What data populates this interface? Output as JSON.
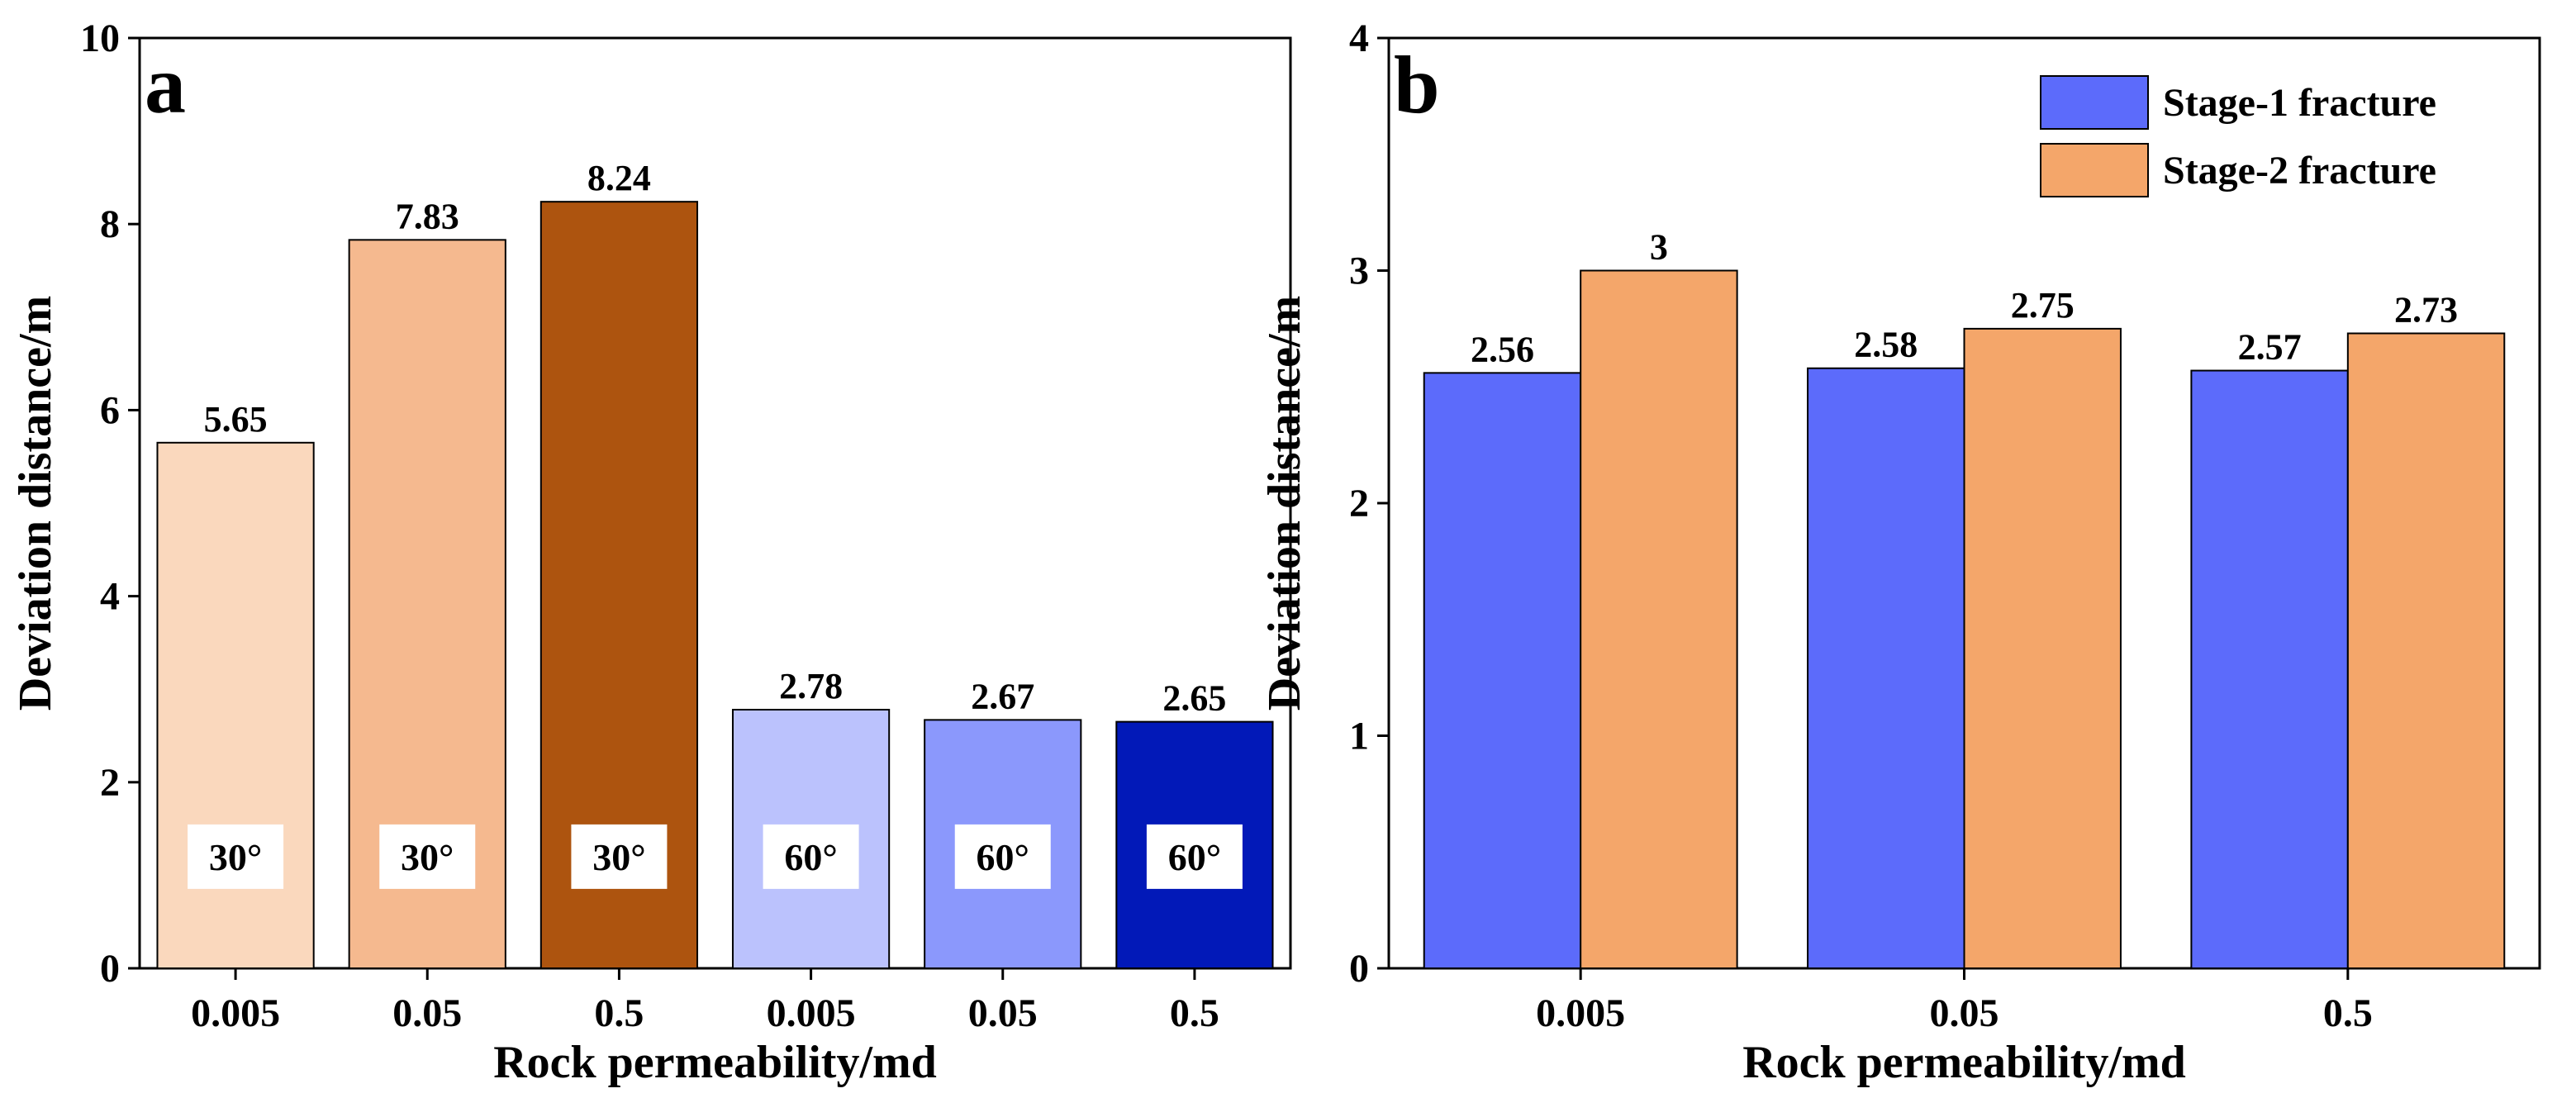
{
  "chart_data": [
    {
      "panel_label": "a",
      "type": "bar",
      "categories": [
        "0.005",
        "0.05",
        "0.5",
        "0.005",
        "0.05",
        "0.5"
      ],
      "values": [
        5.65,
        7.83,
        8.24,
        2.78,
        2.67,
        2.65
      ],
      "data_labels": [
        "5.65",
        "7.83",
        "8.24",
        "2.78",
        "2.67",
        "2.65"
      ],
      "bar_annotations": [
        "30°",
        "30°",
        "30°",
        "60°",
        "60°",
        "60°"
      ],
      "bar_colors": [
        "#fad8bd",
        "#f5b98f",
        "#ad540f",
        "#bbc2fd",
        "#8b98fc",
        "#0219b8"
      ],
      "xlabel": "Rock permeability/md",
      "ylabel": "Deviation distance/m",
      "ylim": [
        0,
        10
      ],
      "yticks": [
        0,
        2,
        4,
        6,
        8,
        10
      ],
      "grid": false
    },
    {
      "panel_label": "b",
      "type": "bar",
      "categories": [
        "0.005",
        "0.05",
        "0.5"
      ],
      "series": [
        {
          "name": "Stage-1 fracture",
          "color": "#5c6bfb",
          "values": [
            2.56,
            2.58,
            2.57
          ],
          "data_labels": [
            "2.56",
            "2.58",
            "2.57"
          ]
        },
        {
          "name": "Stage-2 fracture",
          "color": "#f4a66a",
          "values": [
            3,
            2.75,
            2.73
          ],
          "data_labels": [
            "3",
            "2.75",
            "2.73"
          ]
        }
      ],
      "xlabel": "Rock permeability/md",
      "ylabel": "Deviation distance/m",
      "ylim": [
        0,
        4
      ],
      "yticks": [
        0,
        1,
        2,
        3,
        4
      ],
      "legend": "top-right",
      "grid": false
    }
  ]
}
